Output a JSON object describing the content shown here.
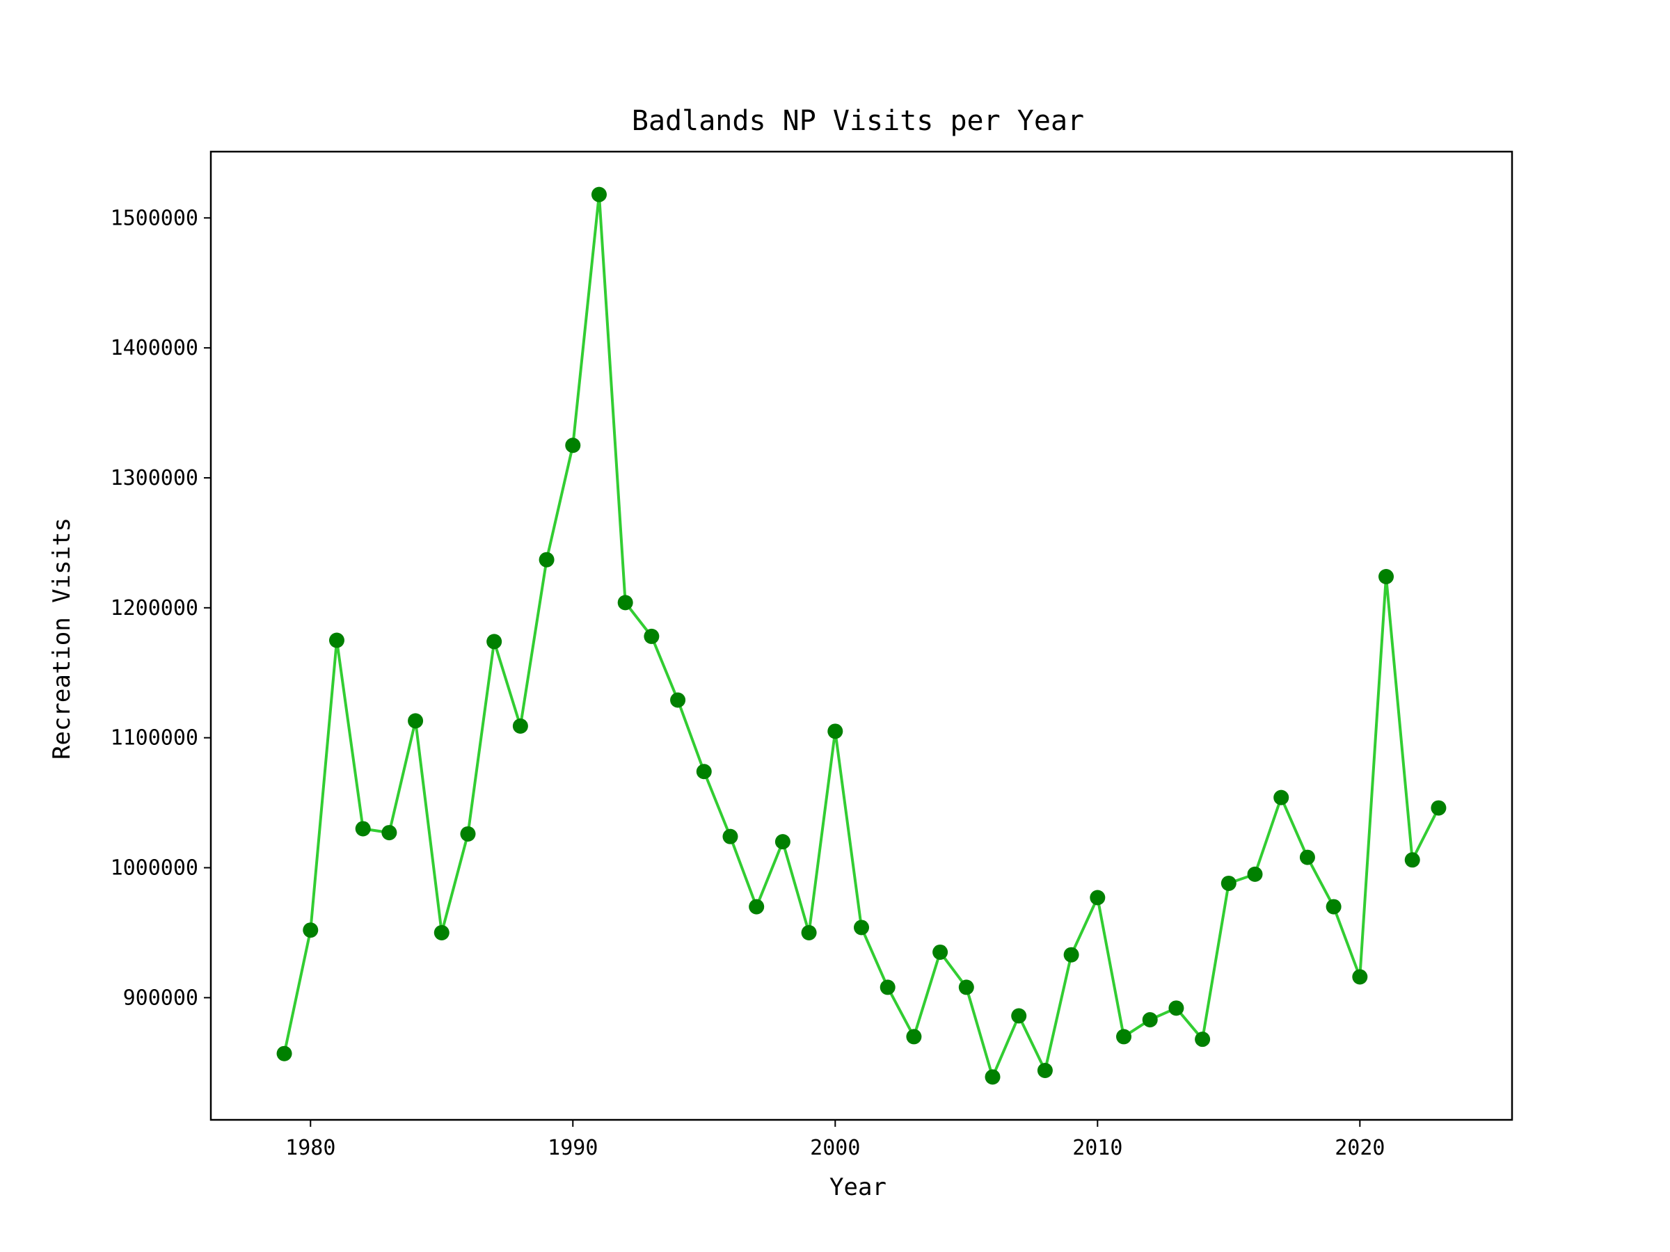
{
  "colors": {
    "line": "#32cd32",
    "marker": "#008000",
    "axes": "#000000",
    "background": "#ffffff"
  },
  "chart_data": {
    "type": "line",
    "title": "Badlands NP Visits per Year",
    "xlabel": "Year",
    "ylabel": "Recreation Visits",
    "xlim": [
      1976.2,
      2025.8
    ],
    "ylim": [
      806000,
      1551000
    ],
    "xticks": [
      1980,
      1990,
      2000,
      2010,
      2020
    ],
    "yticks": [
      900000,
      1000000,
      1100000,
      1200000,
      1300000,
      1400000,
      1500000
    ],
    "grid": false,
    "legend": "none",
    "series": [
      {
        "x": [
          1979,
          1980,
          1981,
          1982,
          1983,
          1984,
          1985,
          1986,
          1987,
          1988,
          1989,
          1990,
          1991,
          1992,
          1993,
          1994,
          1995,
          1996,
          1997,
          1998,
          1999,
          2000,
          2001,
          2002,
          2003,
          2004,
          2005,
          2006,
          2007,
          2008,
          2009,
          2010,
          2011,
          2012,
          2013,
          2014,
          2015,
          2016,
          2017,
          2018,
          2019,
          2020,
          2021,
          2022,
          2023
        ],
        "y": [
          857000,
          952000,
          1175000,
          1030000,
          1027000,
          1113000,
          950000,
          1026000,
          1174000,
          1109000,
          1237000,
          1325000,
          1518000,
          1204000,
          1178000,
          1129000,
          1074000,
          1024000,
          970000,
          1020000,
          950000,
          1105000,
          954000,
          908000,
          870000,
          935000,
          908000,
          839000,
          886000,
          844000,
          933000,
          977000,
          870000,
          883000,
          892000,
          868000,
          988000,
          995000,
          1054000,
          1008000,
          970000,
          916000,
          1224000,
          1006000,
          1046000
        ]
      }
    ]
  }
}
